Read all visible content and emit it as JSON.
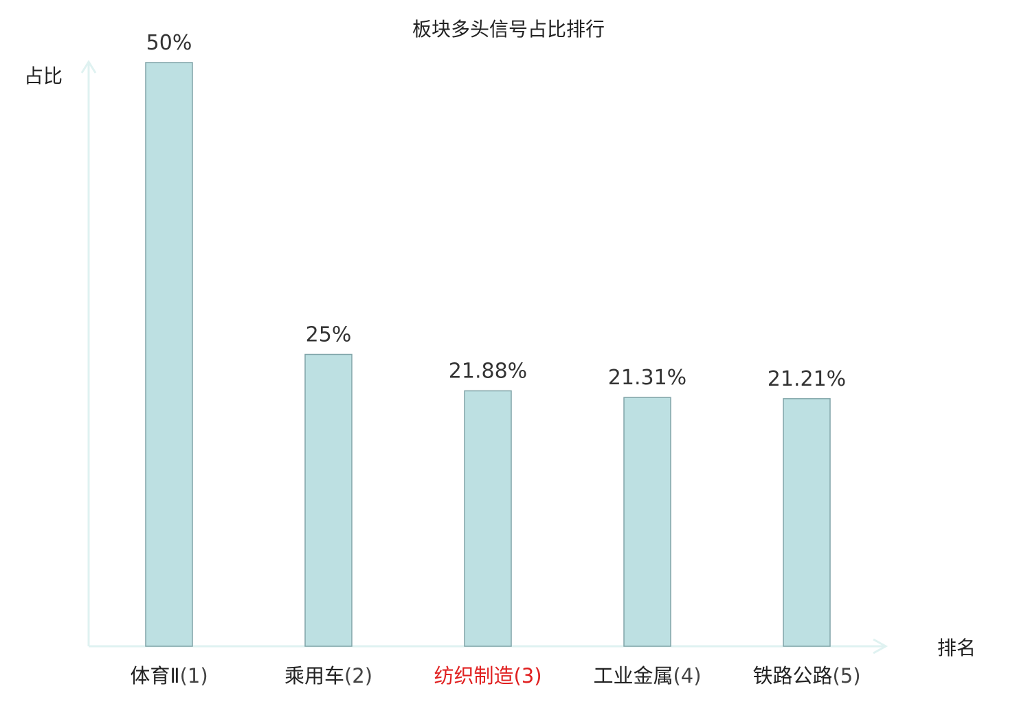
{
  "chart_data": {
    "type": "bar",
    "title": "板块多头信号占比排行",
    "xlabel": "排名",
    "ylabel": "占比",
    "categories": [
      "体育Ⅱ(1)",
      "乘用车(2)",
      "纺织制造(3)",
      "工业金属(4)",
      "铁路公路(5)"
    ],
    "category_names": [
      "体育Ⅱ",
      "乘用车",
      "纺织制造",
      "工业金属",
      "铁路公路"
    ],
    "ranks": [
      "(1)",
      "(2)",
      "(3)",
      "(4)",
      "(5)"
    ],
    "values": [
      50,
      25,
      21.88,
      21.31,
      21.21
    ],
    "data_labels": [
      "50%",
      "25%",
      "21.88%",
      "21.31%",
      "21.21%"
    ],
    "highlight_index": 2,
    "ylim": [
      0,
      50
    ],
    "grid": false,
    "colors": {
      "bar_fill": "#bde0e2",
      "bar_stroke": "#80a4a8",
      "axis": "#dff2f1",
      "text": "#222222",
      "value_text": "#333333",
      "highlight_text": "#e02020"
    }
  }
}
